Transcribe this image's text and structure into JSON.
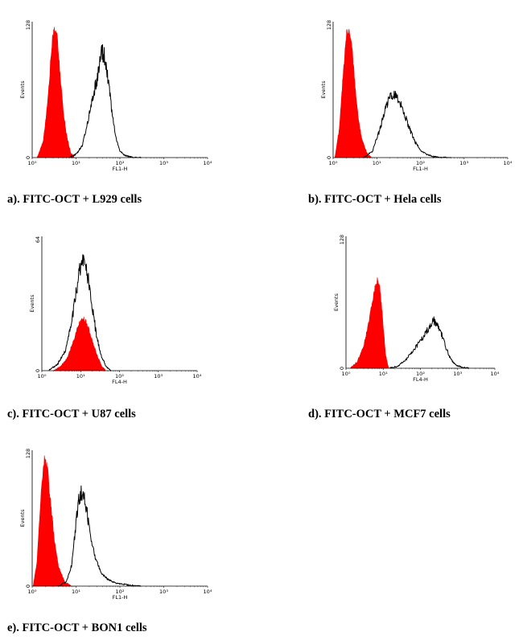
{
  "chart_data": [
    {
      "id": "a",
      "type": "area",
      "caption": "a). FITC-OCT + L929 cells",
      "xlabel": "FL1-H",
      "ylabel": "Events",
      "x_scale": "log",
      "xlim": [
        1,
        10000
      ],
      "ylim": [
        0,
        128
      ],
      "x_tick_labels": [
        "10⁰",
        "10¹",
        "10²",
        "10³",
        "10⁴"
      ],
      "y_tick_labels": [
        "0",
        "128"
      ],
      "series": [
        {
          "role": "control",
          "color": "#ff0000",
          "filled": true,
          "x": [
            1.3,
            1.8,
            2.3,
            2.8,
            3.2,
            3.6,
            4.2,
            5.0,
            6.0,
            7.5,
            9.0
          ],
          "y": [
            0,
            16,
            56,
            105,
            121,
            118,
            85,
            48,
            22,
            5,
            0
          ]
        },
        {
          "role": "sample",
          "color": "#000000",
          "filled": false,
          "x": [
            7,
            10,
            14,
            20,
            26,
            32,
            36,
            40,
            46,
            55,
            65,
            80,
            100,
            130,
            160,
            200,
            300
          ],
          "y": [
            0,
            3,
            12,
            40,
            62,
            80,
            94,
            100,
            92,
            72,
            44,
            20,
            6,
            2,
            1,
            0,
            0
          ]
        }
      ]
    },
    {
      "id": "b",
      "type": "area",
      "caption": "b). FITC-OCT + Hela cells",
      "xlabel": "FL1-H",
      "ylabel": "Events",
      "x_scale": "log",
      "xlim": [
        1,
        10000
      ],
      "ylim": [
        0,
        128
      ],
      "x_tick_labels": [
        "10⁰",
        "10¹",
        "10²",
        "10³",
        "10⁴"
      ],
      "y_tick_labels": [
        "0",
        "128"
      ],
      "series": [
        {
          "role": "control",
          "color": "#ff0000",
          "filled": true,
          "x": [
            1.1,
            1.4,
            1.7,
            2.0,
            2.3,
            2.6,
            3.0,
            3.6,
            4.5,
            6.0,
            7.5
          ],
          "y": [
            0,
            28,
            80,
            116,
            124,
            112,
            80,
            44,
            18,
            4,
            0
          ]
        },
        {
          "role": "sample",
          "color": "#000000",
          "filled": false,
          "x": [
            5,
            8,
            12,
            16,
            20,
            25,
            30,
            40,
            55,
            75,
            100,
            140,
            200,
            300,
            500
          ],
          "y": [
            0,
            6,
            28,
            48,
            58,
            60,
            56,
            44,
            28,
            15,
            7,
            3,
            1,
            0,
            0
          ]
        }
      ]
    },
    {
      "id": "c",
      "type": "area",
      "caption": "c). FITC-OCT + U87 cells",
      "xlabel": "FL4-H",
      "ylabel": "Events",
      "x_scale": "log",
      "xlim": [
        1,
        10000
      ],
      "ylim": [
        0,
        64
      ],
      "x_tick_labels": [
        "10⁰",
        "10¹",
        "10²",
        "10³",
        "10⁴"
      ],
      "y_tick_labels": [
        "0",
        "64"
      ],
      "series": [
        {
          "role": "control",
          "color": "#ff0000",
          "filled": true,
          "x": [
            2.0,
            3.0,
            4.5,
            6.5,
            8.5,
            10.5,
            13,
            16,
            20,
            27,
            35,
            45
          ],
          "y": [
            0,
            2,
            6,
            14,
            21,
            25,
            24,
            20,
            14,
            7,
            2,
            0
          ]
        },
        {
          "role": "sample",
          "color": "#000000",
          "filled": false,
          "x": [
            1.5,
            2.5,
            4,
            6,
            8,
            10,
            12,
            15,
            18,
            24,
            32,
            45,
            60
          ],
          "y": [
            0,
            3,
            9,
            24,
            40,
            50,
            52,
            46,
            36,
            20,
            8,
            2,
            0
          ]
        }
      ]
    },
    {
      "id": "d",
      "type": "area",
      "caption": "d). FITC-OCT + MCF7 cells",
      "xlabel": "FL4-H",
      "ylabel": "Events",
      "x_scale": "log",
      "xlim": [
        1,
        10000
      ],
      "ylim": [
        0,
        128
      ],
      "x_tick_labels": [
        "10⁰",
        "10¹",
        "10²",
        "10³",
        "10⁴"
      ],
      "y_tick_labels": [
        "0",
        "128"
      ],
      "series": [
        {
          "role": "control",
          "color": "#ff0000",
          "filled": true,
          "x": [
            1.3,
            2.0,
            3.0,
            4.0,
            5.0,
            6.0,
            7.0,
            8.0,
            9.5,
            11.5,
            14
          ],
          "y": [
            0,
            6,
            22,
            42,
            62,
            78,
            86,
            80,
            52,
            14,
            0
          ]
        },
        {
          "role": "sample",
          "color": "#000000",
          "filled": false,
          "x": [
            15,
            25,
            40,
            60,
            90,
            130,
            170,
            220,
            280,
            360,
            480,
            650,
            900,
            1300,
            2000
          ],
          "y": [
            0,
            2,
            8,
            16,
            24,
            32,
            40,
            46,
            43,
            34,
            20,
            9,
            3,
            1,
            0
          ]
        }
      ]
    },
    {
      "id": "e",
      "type": "area",
      "caption": "e). FITC-OCT + BON1 cells",
      "xlabel": "FL1-H",
      "ylabel": "Events",
      "x_scale": "log",
      "xlim": [
        1,
        10000
      ],
      "ylim": [
        0,
        128
      ],
      "x_tick_labels": [
        "10⁰",
        "10¹",
        "10²",
        "10³",
        "10⁴"
      ],
      "y_tick_labels": [
        "0",
        "128"
      ],
      "series": [
        {
          "role": "control",
          "color": "#ff0000",
          "filled": true,
          "x": [
            1.05,
            1.3,
            1.55,
            1.8,
            2.0,
            2.2,
            2.6,
            3.2,
            4.0,
            5.5,
            8.0
          ],
          "y": [
            0,
            24,
            80,
            116,
            122,
            112,
            80,
            44,
            18,
            4,
            0
          ]
        },
        {
          "role": "sample",
          "color": "#000000",
          "filled": false,
          "x": [
            4,
            6,
            8,
            10,
            11.5,
            13,
            15,
            18,
            22,
            28,
            38,
            55,
            80,
            150,
            300
          ],
          "y": [
            0,
            4,
            20,
            60,
            80,
            88,
            84,
            68,
            46,
            26,
            12,
            6,
            3,
            1,
            0
          ]
        }
      ]
    }
  ]
}
